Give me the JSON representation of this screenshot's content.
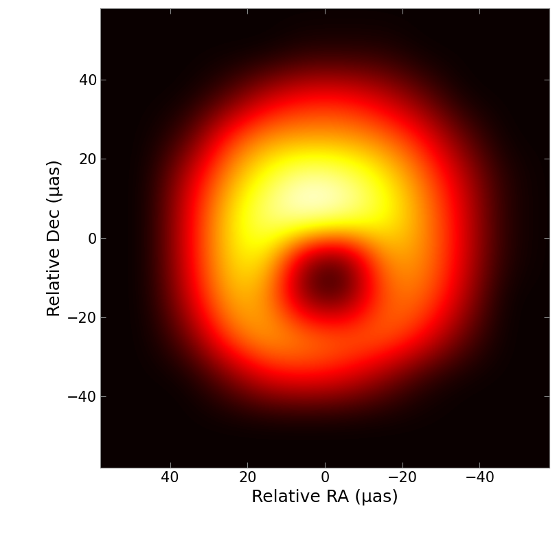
{
  "chart_data": {
    "type": "heatmap",
    "x_label": "Relative RA (μas)",
    "y_label": "Relative Dec (μas)",
    "xlim": [
      58,
      -58
    ],
    "ylim": [
      -58,
      58
    ],
    "xticks": [
      40,
      20,
      0,
      {
        "value": -20,
        "label": "−20"
      },
      {
        "value": -40,
        "label": "−40"
      }
    ],
    "yticks": [
      {
        "value": -40,
        "label": "−40"
      },
      {
        "value": -20,
        "label": "−20"
      },
      0,
      20,
      40
    ],
    "color": "hot",
    "value_range": [
      0,
      1
    ],
    "x": [
      55,
      45,
      35,
      25,
      15,
      5,
      -5,
      -15,
      -25,
      -35,
      -45,
      -55
    ],
    "y": [
      55,
      45,
      35,
      25,
      15,
      5,
      -5,
      -15,
      -25,
      -35,
      -45,
      -55
    ],
    "cells": [
      [
        0,
        0,
        0,
        0,
        0,
        0,
        0,
        0,
        0,
        0,
        0,
        0
      ],
      [
        0,
        0,
        0,
        0,
        0,
        0.05,
        0.05,
        0.05,
        0,
        0,
        0,
        0
      ],
      [
        0,
        0,
        0,
        0.1,
        0.3,
        0.4,
        0.4,
        0.3,
        0.15,
        0,
        0,
        0
      ],
      [
        0,
        0,
        0.1,
        0.45,
        0.6,
        0.6,
        0.6,
        0.55,
        0.4,
        0.15,
        0,
        0
      ],
      [
        0,
        0,
        0.3,
        0.6,
        0.8,
        0.95,
        0.9,
        0.75,
        0.55,
        0.3,
        0.05,
        0
      ],
      [
        0,
        0,
        0.35,
        0.7,
        0.9,
        1.0,
        0.95,
        0.8,
        0.6,
        0.35,
        0.05,
        0
      ],
      [
        0,
        0,
        0.35,
        0.7,
        0.75,
        0.15,
        0.05,
        0.6,
        0.6,
        0.35,
        0.05,
        0
      ],
      [
        0,
        0,
        0.3,
        0.65,
        0.6,
        0.1,
        0.05,
        0.5,
        0.55,
        0.3,
        0,
        0
      ],
      [
        0,
        0,
        0.15,
        0.5,
        0.65,
        0.6,
        0.55,
        0.55,
        0.4,
        0.15,
        0,
        0
      ],
      [
        0,
        0,
        0,
        0.15,
        0.35,
        0.4,
        0.35,
        0.2,
        0.05,
        0,
        0,
        0
      ],
      [
        0,
        0,
        0,
        0,
        0,
        0,
        0,
        0,
        0,
        0,
        0,
        0
      ],
      [
        0,
        0,
        0,
        0,
        0,
        0,
        0,
        0,
        0,
        0,
        0,
        0
      ]
    ]
  }
}
